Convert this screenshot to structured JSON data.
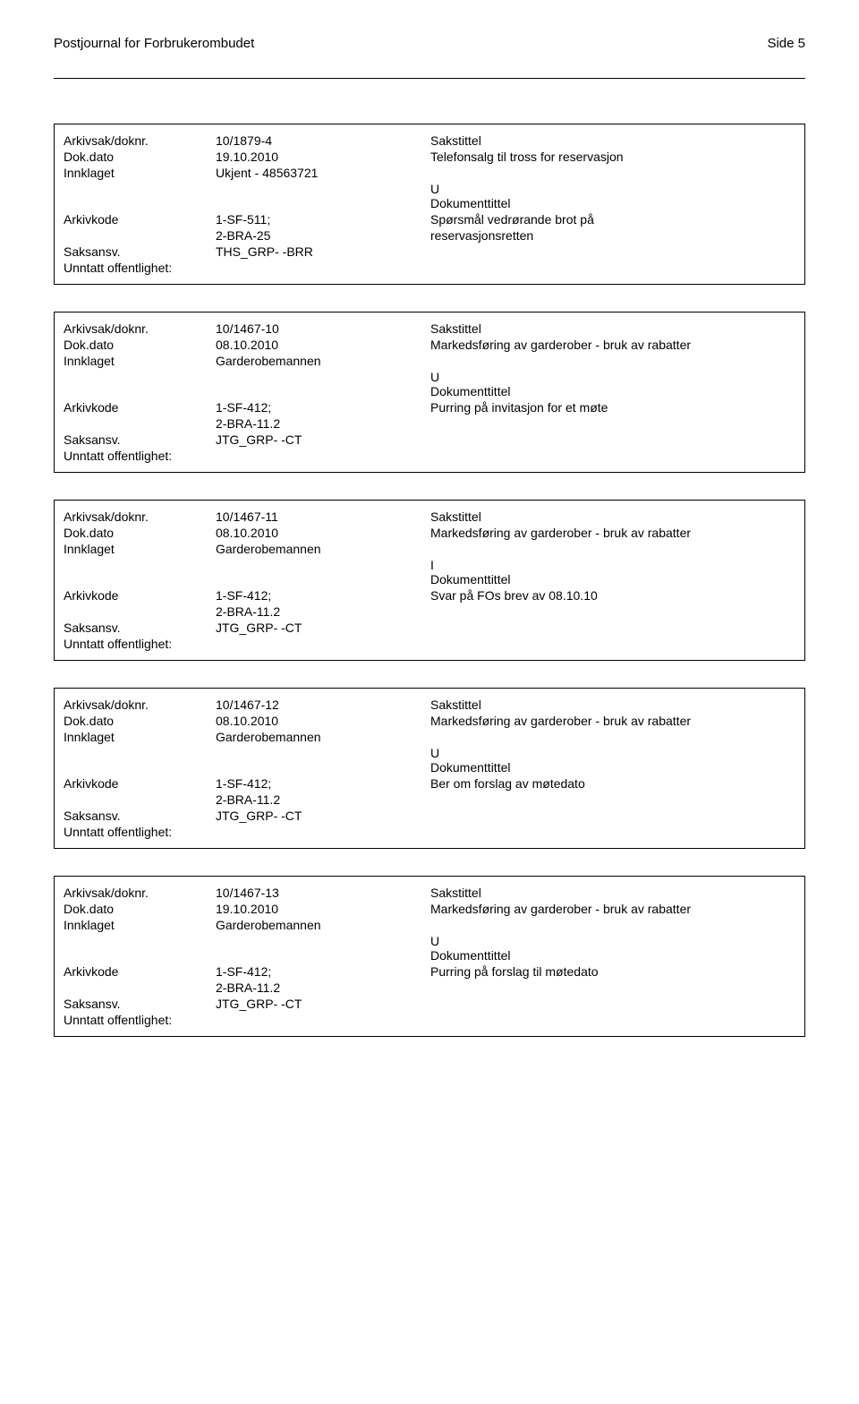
{
  "header": {
    "org": "Postjournal for Forbrukerombudet",
    "page": "Side 5"
  },
  "labels": {
    "arkivsak": "Arkivsak/doknr.",
    "dokdato": "Dok.dato",
    "innklaget": "Innklaget",
    "arkivkode": "Arkivkode",
    "saksansv": "Saksansv.",
    "unntatt": "Unntatt offentlighet:",
    "sakstittel": "Sakstittel",
    "dokumenttittel": "Dokumenttittel"
  },
  "records": [
    {
      "arkivsak": "10/1879-4",
      "dokdato": "19.10.2010",
      "sakstittel_text": "Telefonsalg til tross for reservasjon",
      "innklaget": "Ukjent - 48563721",
      "marker": "U",
      "arkivkode1": "1-SF-511;",
      "arkivkode2": "2-BRA-25",
      "doktittel1": "Spørsmål vedrørande brot på",
      "doktittel2": "reservasjonsretten",
      "saksansv": "THS_GRP- -BRR"
    },
    {
      "arkivsak": "10/1467-10",
      "dokdato": "08.10.2010",
      "sakstittel_text": "Markedsføring av garderober - bruk av rabatter",
      "innklaget": "Garderobemannen",
      "marker": "U",
      "arkivkode1": "1-SF-412;",
      "arkivkode2": "2-BRA-11.2",
      "doktittel1": "Purring på invitasjon for et møte",
      "doktittel2": "",
      "saksansv": "JTG_GRP- -CT"
    },
    {
      "arkivsak": "10/1467-11",
      "dokdato": "08.10.2010",
      "sakstittel_text": "Markedsføring av garderober - bruk av rabatter",
      "innklaget": "Garderobemannen",
      "marker": "I",
      "arkivkode1": "1-SF-412;",
      "arkivkode2": "2-BRA-11.2",
      "doktittel1": "Svar på FOs brev av 08.10.10",
      "doktittel2": "",
      "saksansv": "JTG_GRP- -CT"
    },
    {
      "arkivsak": "10/1467-12",
      "dokdato": "08.10.2010",
      "sakstittel_text": "Markedsføring av garderober - bruk av rabatter",
      "innklaget": "Garderobemannen",
      "marker": "U",
      "arkivkode1": "1-SF-412;",
      "arkivkode2": "2-BRA-11.2",
      "doktittel1": "Ber om forslag av møtedato",
      "doktittel2": "",
      "saksansv": "JTG_GRP- -CT"
    },
    {
      "arkivsak": "10/1467-13",
      "dokdato": "19.10.2010",
      "sakstittel_text": "Markedsføring av garderober - bruk av rabatter",
      "innklaget": "Garderobemannen",
      "marker": "U",
      "arkivkode1": "1-SF-412;",
      "arkivkode2": "2-BRA-11.2",
      "doktittel1": "Purring på forslag til møtedato",
      "doktittel2": "",
      "saksansv": "JTG_GRP- -CT"
    }
  ]
}
